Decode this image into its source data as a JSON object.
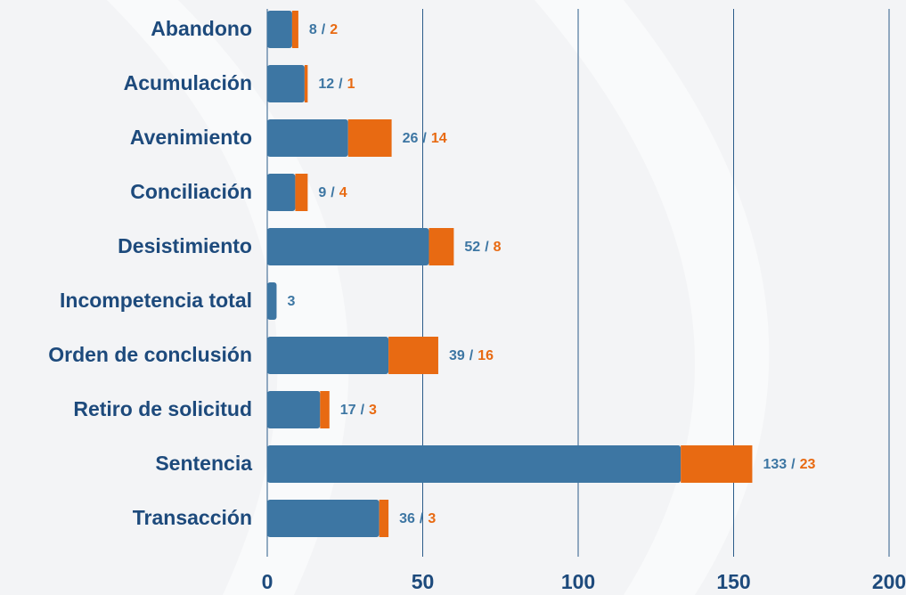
{
  "chart_data": {
    "type": "stacked_barh",
    "categories": [
      "Abandono",
      "Acumulación",
      "Avenimiento",
      "Conciliación",
      "Desistimiento",
      "Incompetencia total",
      "Orden de conclusión",
      "Retiro de solicitud",
      "Sentencia",
      "Transacción"
    ],
    "series": [
      {
        "color": "#3d76a3",
        "values": [
          8,
          12,
          26,
          9,
          52,
          3,
          39,
          17,
          133,
          36
        ]
      },
      {
        "color": "#e86a12",
        "values": [
          2,
          1,
          14,
          4,
          8,
          null,
          16,
          3,
          23,
          3
        ]
      }
    ],
    "separator": "/",
    "xlim": [
      0,
      200
    ],
    "xticks": [
      0,
      50,
      100,
      150,
      200
    ],
    "grid": true
  }
}
